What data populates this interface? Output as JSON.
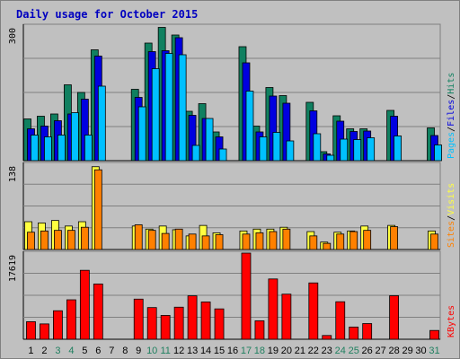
{
  "page_title": "Daily usage for October 2015",
  "colors": {
    "background": "#c0c0c0",
    "title": "#0000c0",
    "hits": "#108060",
    "files": "#0000e0",
    "pages": "#00c0ff",
    "visits": "#ffff40",
    "sites": "#ff8000",
    "kbytes": "#ff0000",
    "weekend_day": "#208060",
    "weekday": "#000000"
  },
  "chart_data": [
    {
      "type": "bar",
      "title": "Daily usage for October 2015",
      "ylabel_parts": [
        {
          "text": "Pages",
          "color": "#00c0ff"
        },
        {
          "text": "/",
          "color": "#000000"
        },
        {
          "text": "Files",
          "color": "#0000e0"
        },
        {
          "text": "/",
          "color": "#000000"
        },
        {
          "text": "Hits",
          "color": "#108060"
        }
      ],
      "ymax_label": "300",
      "ylim": [
        0,
        300
      ],
      "x": [
        1,
        2,
        3,
        4,
        5,
        6,
        7,
        8,
        9,
        10,
        11,
        12,
        13,
        14,
        15,
        16,
        17,
        18,
        19,
        20,
        21,
        22,
        23,
        24,
        25,
        26,
        27,
        28,
        29,
        30,
        31
      ],
      "series": [
        {
          "name": "Hits",
          "color": "#108060",
          "values": [
            93,
            99,
            104,
            169,
            152,
            247,
            0,
            0,
            159,
            262,
            297,
            280,
            110,
            127,
            64,
            0,
            254,
            77,
            163,
            145,
            0,
            130,
            20,
            100,
            71,
            71,
            0,
            112,
            0,
            0,
            73
          ]
        },
        {
          "name": "Files",
          "color": "#0000e0",
          "values": [
            71,
            77,
            89,
            104,
            137,
            233,
            0,
            0,
            141,
            243,
            245,
            274,
            101,
            94,
            53,
            0,
            218,
            64,
            144,
            128,
            0,
            111,
            15,
            88,
            65,
            66,
            0,
            99,
            0,
            0,
            56
          ]
        },
        {
          "name": "Pages",
          "color": "#00c0ff",
          "values": [
            57,
            53,
            57,
            107,
            57,
            166,
            0,
            0,
            120,
            205,
            239,
            236,
            34,
            94,
            26,
            0,
            155,
            53,
            63,
            44,
            0,
            60,
            12,
            48,
            47,
            51,
            0,
            55,
            0,
            0,
            35
          ]
        }
      ]
    },
    {
      "type": "bar",
      "ylabel_parts": [
        {
          "text": "Sites",
          "color": "#ff8000"
        },
        {
          "text": "/",
          "color": "#000000"
        },
        {
          "text": "Visits",
          "color": "#ffff40"
        }
      ],
      "ymax_label": "138",
      "ylim": [
        0,
        138
      ],
      "x": [
        1,
        2,
        3,
        4,
        5,
        6,
        7,
        8,
        9,
        10,
        11,
        12,
        13,
        14,
        15,
        16,
        17,
        18,
        19,
        20,
        21,
        22,
        23,
        24,
        25,
        26,
        27,
        28,
        29,
        30,
        31
      ],
      "series": [
        {
          "name": "Visits",
          "color": "#ffff40",
          "values": [
            45,
            43,
            47,
            38,
            45,
            134,
            0,
            0,
            38,
            33,
            38,
            32,
            22,
            39,
            27,
            0,
            30,
            33,
            33,
            36,
            0,
            29,
            12,
            28,
            30,
            38,
            0,
            39,
            0,
            0,
            30
          ]
        },
        {
          "name": "Sites",
          "color": "#ff8000",
          "values": [
            28,
            30,
            31,
            31,
            36,
            129,
            0,
            0,
            40,
            31,
            26,
            33,
            25,
            22,
            24,
            0,
            25,
            27,
            29,
            33,
            0,
            22,
            10,
            25,
            29,
            31,
            0,
            37,
            0,
            0,
            25
          ]
        }
      ]
    },
    {
      "type": "bar",
      "ylabel_parts": [
        {
          "text": "KBytes",
          "color": "#ff0000"
        }
      ],
      "ymax_label": "17619",
      "ylim": [
        0,
        17619
      ],
      "x": [
        1,
        2,
        3,
        4,
        5,
        6,
        7,
        8,
        9,
        10,
        11,
        12,
        13,
        14,
        15,
        16,
        17,
        18,
        19,
        20,
        21,
        22,
        23,
        24,
        25,
        26,
        27,
        28,
        29,
        30,
        31
      ],
      "series": [
        {
          "name": "KBytes",
          "color": "#ff0000",
          "values": [
            3590,
            3140,
            5830,
            8070,
            14100,
            11300,
            0,
            0,
            8210,
            6480,
            4870,
            6560,
            8880,
            7630,
            6210,
            0,
            17619,
            3770,
            12330,
            9220,
            0,
            11520,
            770,
            7670,
            2500,
            3210,
            0,
            8900,
            0,
            0,
            1800
          ]
        }
      ]
    }
  ],
  "x_tick_labels": [
    "1",
    "2",
    "3",
    "4",
    "5",
    "6",
    "7",
    "8",
    "9",
    "10",
    "11",
    "12",
    "13",
    "14",
    "15",
    "16",
    "17",
    "18",
    "19",
    "20",
    "21",
    "22",
    "23",
    "24",
    "25",
    "26",
    "27",
    "28",
    "29",
    "30",
    "31"
  ],
  "weekend_days": [
    3,
    4,
    10,
    11,
    17,
    18,
    24,
    25,
    31
  ]
}
